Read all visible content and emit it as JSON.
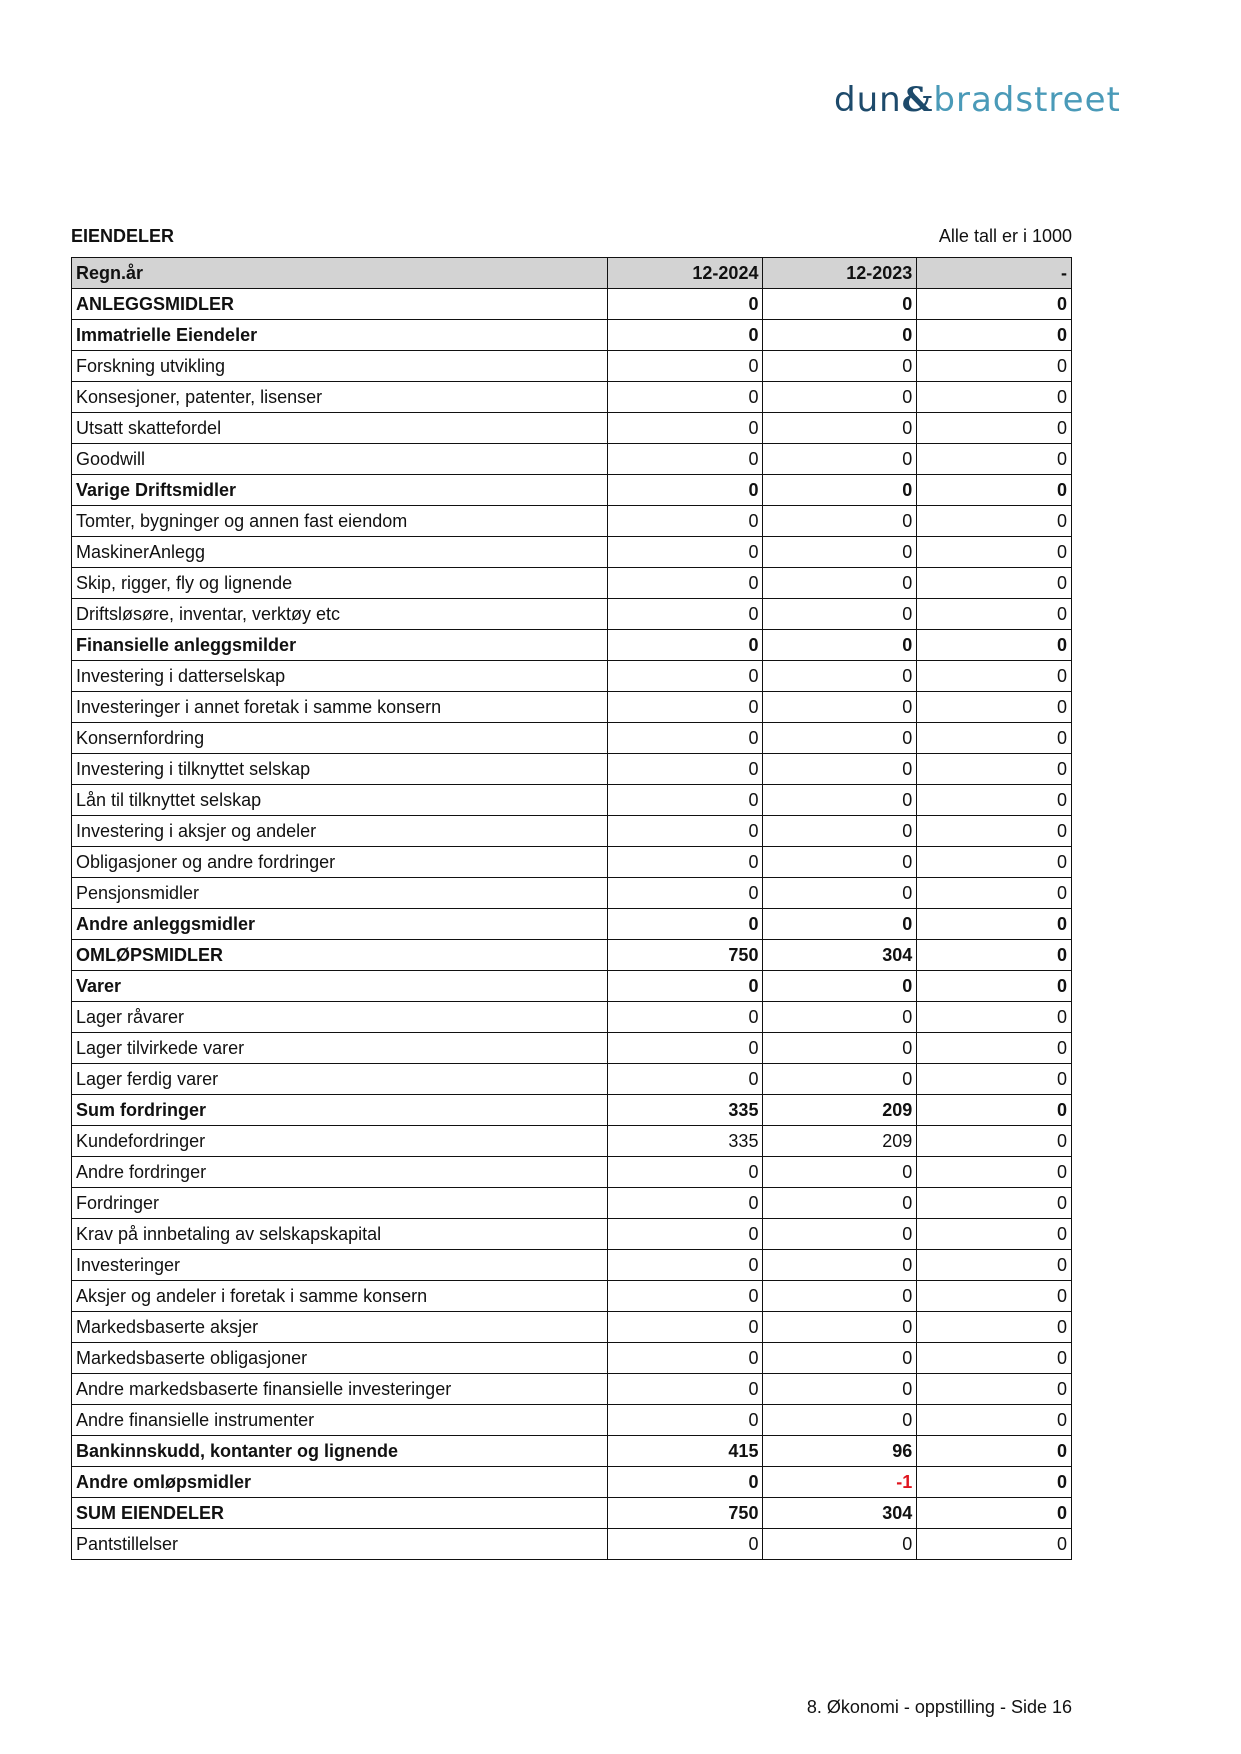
{
  "logo": {
    "text": "dun & bradstreet",
    "part1": "dun",
    "amp": "&",
    "part2": "bradstreet"
  },
  "section_title": "EIENDELER",
  "unit_note": "Alle tall er i 1000",
  "table": {
    "headers": [
      "Regn.år",
      "12-2024",
      "12-2023",
      "-"
    ],
    "rows": [
      {
        "label": "ANLEGGSMIDLER",
        "bold": true,
        "values": [
          "0",
          "0",
          "0"
        ]
      },
      {
        "label": "Immatrielle Eiendeler",
        "bold": true,
        "values": [
          "0",
          "0",
          "0"
        ]
      },
      {
        "label": "Forskning utvikling",
        "bold": false,
        "values": [
          "0",
          "0",
          "0"
        ]
      },
      {
        "label": "Konsesjoner, patenter, lisenser",
        "bold": false,
        "values": [
          "0",
          "0",
          "0"
        ]
      },
      {
        "label": "Utsatt skattefordel",
        "bold": false,
        "values": [
          "0",
          "0",
          "0"
        ]
      },
      {
        "label": "Goodwill",
        "bold": false,
        "values": [
          "0",
          "0",
          "0"
        ]
      },
      {
        "label": "Varige Driftsmidler",
        "bold": true,
        "values": [
          "0",
          "0",
          "0"
        ]
      },
      {
        "label": "Tomter, bygninger og annen fast eiendom",
        "bold": false,
        "values": [
          "0",
          "0",
          "0"
        ]
      },
      {
        "label": "MaskinerAnlegg",
        "bold": false,
        "values": [
          "0",
          "0",
          "0"
        ]
      },
      {
        "label": "Skip, rigger, fly og lignende",
        "bold": false,
        "values": [
          "0",
          "0",
          "0"
        ]
      },
      {
        "label": "Driftsløsøre, inventar, verktøy etc",
        "bold": false,
        "values": [
          "0",
          "0",
          "0"
        ]
      },
      {
        "label": "Finansielle anleggsmilder",
        "bold": true,
        "values": [
          "0",
          "0",
          "0"
        ]
      },
      {
        "label": "Investering i datterselskap",
        "bold": false,
        "values": [
          "0",
          "0",
          "0"
        ]
      },
      {
        "label": "Investeringer i annet foretak i samme konsern",
        "bold": false,
        "values": [
          "0",
          "0",
          "0"
        ]
      },
      {
        "label": "Konsernfordring",
        "bold": false,
        "values": [
          "0",
          "0",
          "0"
        ]
      },
      {
        "label": "Investering i tilknyttet selskap",
        "bold": false,
        "values": [
          "0",
          "0",
          "0"
        ]
      },
      {
        "label": "Lån til tilknyttet selskap",
        "bold": false,
        "values": [
          "0",
          "0",
          "0"
        ]
      },
      {
        "label": "Investering i aksjer og andeler",
        "bold": false,
        "values": [
          "0",
          "0",
          "0"
        ]
      },
      {
        "label": "Obligasjoner og andre fordringer",
        "bold": false,
        "values": [
          "0",
          "0",
          "0"
        ]
      },
      {
        "label": "Pensjonsmidler",
        "bold": false,
        "values": [
          "0",
          "0",
          "0"
        ]
      },
      {
        "label": "Andre anleggsmidler",
        "bold": true,
        "values": [
          "0",
          "0",
          "0"
        ]
      },
      {
        "label": "OMLØPSMIDLER",
        "bold": true,
        "values": [
          "750",
          "304",
          "0"
        ]
      },
      {
        "label": "Varer",
        "bold": true,
        "values": [
          "0",
          "0",
          "0"
        ]
      },
      {
        "label": "Lager råvarer",
        "bold": false,
        "values": [
          "0",
          "0",
          "0"
        ]
      },
      {
        "label": "Lager tilvirkede varer",
        "bold": false,
        "values": [
          "0",
          "0",
          "0"
        ]
      },
      {
        "label": "Lager ferdig varer",
        "bold": false,
        "values": [
          "0",
          "0",
          "0"
        ]
      },
      {
        "label": "Sum fordringer",
        "bold": true,
        "values": [
          "335",
          "209",
          "0"
        ]
      },
      {
        "label": "Kundefordringer",
        "bold": false,
        "values": [
          "335",
          "209",
          "0"
        ]
      },
      {
        "label": "Andre fordringer",
        "bold": false,
        "values": [
          "0",
          "0",
          "0"
        ]
      },
      {
        "label": "Fordringer",
        "bold": false,
        "values": [
          "0",
          "0",
          "0"
        ]
      },
      {
        "label": "Krav på innbetaling av selskapskapital",
        "bold": false,
        "values": [
          "0",
          "0",
          "0"
        ]
      },
      {
        "label": "Investeringer",
        "bold": false,
        "values": [
          "0",
          "0",
          "0"
        ]
      },
      {
        "label": "Aksjer og andeler i foretak i samme konsern",
        "bold": false,
        "values": [
          "0",
          "0",
          "0"
        ]
      },
      {
        "label": "Markedsbaserte aksjer",
        "bold": false,
        "values": [
          "0",
          "0",
          "0"
        ]
      },
      {
        "label": "Markedsbaserte obligasjoner",
        "bold": false,
        "values": [
          "0",
          "0",
          "0"
        ]
      },
      {
        "label": "Andre markedsbaserte finansielle investeringer",
        "bold": false,
        "values": [
          "0",
          "0",
          "0"
        ]
      },
      {
        "label": "Andre finansielle instrumenter",
        "bold": false,
        "values": [
          "0",
          "0",
          "0"
        ]
      },
      {
        "label": "Bankinnskudd, kontanter og lignende",
        "bold": true,
        "values": [
          "415",
          "96",
          "0"
        ]
      },
      {
        "label": "Andre omløpsmidler",
        "bold": true,
        "values": [
          "0",
          "-1",
          "0"
        ]
      },
      {
        "label": "SUM EIENDELER",
        "bold": true,
        "values": [
          "750",
          "304",
          "0"
        ]
      },
      {
        "label": "Pantstillelser",
        "bold": false,
        "values": [
          "0",
          "0",
          "0"
        ]
      }
    ]
  },
  "colors": {
    "negative": "#e0141e",
    "header_bg": "#d3d3d3",
    "logo_dark": "#1d4a6b",
    "logo_light": "#4a9ab8"
  },
  "footer": "8. Økonomi - oppstilling - Side 16"
}
